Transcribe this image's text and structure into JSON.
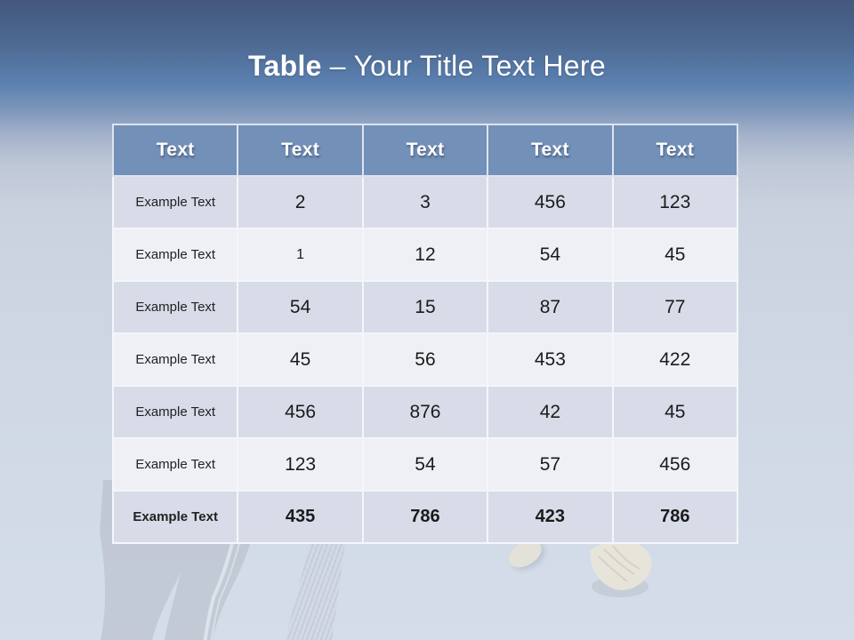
{
  "title": {
    "bold": "Table",
    "rest": "– Your Title Text Here"
  },
  "table": {
    "headers": [
      "Text",
      "Text",
      "Text",
      "Text",
      "Text"
    ],
    "rows": [
      [
        "Example Text",
        "2",
        "3",
        "456",
        "123"
      ],
      [
        "Example Text",
        "1",
        "12",
        "54",
        "45"
      ],
      [
        "Example Text",
        "54",
        "15",
        "87",
        "77"
      ],
      [
        "Example Text",
        "45",
        "56",
        "453",
        "422"
      ],
      [
        "Example Text",
        "456",
        "876",
        "42",
        "45"
      ],
      [
        "Example Text",
        "123",
        "54",
        "57",
        "456"
      ],
      [
        "Example Text",
        "435",
        "786",
        "423",
        "786"
      ]
    ]
  },
  "colors": {
    "header_bg": "#7290b8",
    "row_band_dark": "#d8dce8",
    "row_band_light": "#eef0f5",
    "title_text": "#ffffff",
    "cell_text": "#1b1b1b",
    "gradient_top": "#43587b",
    "gradient_mid": "#5b80b0",
    "gradient_bottom": "#d4dde9"
  },
  "background_art": {
    "legs": "legs-silhouette",
    "bat": "baseball-bat-silhouette",
    "small_shoe": "sneaker-toe-silhouette",
    "big_shoe": "sneaker-silhouette"
  }
}
